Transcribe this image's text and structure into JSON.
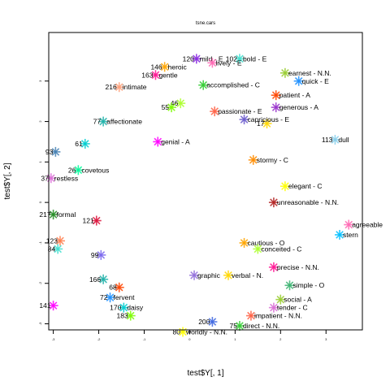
{
  "chart_data": {
    "type": "scatter",
    "title": "tsne.cars",
    "xlabel": "test$Y[, 1]",
    "ylabel": "test$Y[, 2]",
    "xlim": [
      -3.1,
      3.8
    ],
    "ylim": [
      -3.15,
      4.2
    ],
    "xticks": [
      -3,
      -2,
      -1,
      0,
      1,
      2,
      3
    ],
    "yticks": [
      -3,
      -2,
      -1,
      0,
      1,
      2,
      3
    ],
    "grid": false,
    "points": [
      {
        "id": "120",
        "label": "mild - E",
        "x": 0.15,
        "y": 3.55,
        "color": "#8a2be2"
      },
      {
        "id": "102",
        "label": "bold - E",
        "x": 1.1,
        "y": 3.55,
        "color": "#40e0d0"
      },
      {
        "id": "",
        "label": "lively - E",
        "x": 0.5,
        "y": 3.45,
        "color": "#ff69b4"
      },
      {
        "id": "146",
        "label": "heroic",
        "x": -0.55,
        "y": 3.35,
        "color": "#ffa500"
      },
      {
        "id": "",
        "label": "earnest - N.N.",
        "x": 2.1,
        "y": 3.2,
        "color": "#9acd32"
      },
      {
        "id": "163",
        "label": "gentle",
        "x": -0.75,
        "y": 3.15,
        "color": "#ff1493"
      },
      {
        "id": "",
        "label": "quick - E",
        "x": 2.4,
        "y": 3.0,
        "color": "#1e90ff"
      },
      {
        "id": "",
        "label": "accomplished - C",
        "x": 0.3,
        "y": 2.9,
        "color": "#32cd32"
      },
      {
        "id": "216",
        "label": "intimate",
        "x": -1.55,
        "y": 2.85,
        "color": "#ffa07a"
      },
      {
        "id": "",
        "label": "patient - A",
        "x": 1.9,
        "y": 2.65,
        "color": "#ff4500"
      },
      {
        "id": "46",
        "label": "",
        "x": -0.2,
        "y": 2.45,
        "color": "#adff2f"
      },
      {
        "id": "55",
        "label": "",
        "x": -0.4,
        "y": 2.35,
        "color": "#7cfc00"
      },
      {
        "id": "",
        "label": "generous - A",
        "x": 1.9,
        "y": 2.35,
        "color": "#9932cc"
      },
      {
        "id": "",
        "label": "passionate - E",
        "x": 0.55,
        "y": 2.25,
        "color": "#ff6347"
      },
      {
        "id": "77",
        "label": "affectionate",
        "x": -1.9,
        "y": 2.0,
        "color": "#20b2aa"
      },
      {
        "id": "17",
        "label": "",
        "x": 1.7,
        "y": 1.95,
        "color": "#ffd700"
      },
      {
        "id": "",
        "label": "capricious - E",
        "x": 1.2,
        "y": 2.05,
        "color": "#6a5acd"
      },
      {
        "id": "",
        "label": "genial - A",
        "x": -0.7,
        "y": 1.5,
        "color": "#ff00ff"
      },
      {
        "id": "113",
        "label": "dull",
        "x": 3.2,
        "y": 1.55,
        "color": "#87ceeb"
      },
      {
        "id": "61",
        "label": "",
        "x": -2.3,
        "y": 1.45,
        "color": "#00ced1"
      },
      {
        "id": "93",
        "label": "",
        "x": -2.95,
        "y": 1.25,
        "color": "#4682b4"
      },
      {
        "id": "",
        "label": "stormy - C",
        "x": 1.4,
        "y": 1.05,
        "color": "#ff8c00"
      },
      {
        "id": "26",
        "label": "covetous",
        "x": -2.45,
        "y": 0.8,
        "color": "#00fa9a"
      },
      {
        "id": "37",
        "label": "restless",
        "x": -3.05,
        "y": 0.6,
        "color": "#da70d6"
      },
      {
        "id": "",
        "label": "elegant - C",
        "x": 2.1,
        "y": 0.4,
        "color": "#ffff00"
      },
      {
        "id": "",
        "label": "unreasonable - N.N.",
        "x": 1.85,
        "y": 0.0,
        "color": "#b22222"
      },
      {
        "id": "217",
        "label": "formal",
        "x": -3.0,
        "y": -0.3,
        "color": "#228b22"
      },
      {
        "id": "121",
        "label": "",
        "x": -2.05,
        "y": -0.45,
        "color": "#dc143c"
      },
      {
        "id": "123",
        "label": "",
        "x": -2.85,
        "y": -0.95,
        "color": "#ff7f50"
      },
      {
        "id": "84",
        "label": "",
        "x": -2.9,
        "y": -1.15,
        "color": "#40e0d0"
      },
      {
        "id": "",
        "label": "agreeable",
        "x": 3.5,
        "y": -0.55,
        "color": "#ff69b4"
      },
      {
        "id": "",
        "label": "stern",
        "x": 3.3,
        "y": -0.8,
        "color": "#00bfff"
      },
      {
        "id": "99",
        "label": "",
        "x": -1.95,
        "y": -1.3,
        "color": "#7b68ee"
      },
      {
        "id": "",
        "label": "cautious - O",
        "x": 1.2,
        "y": -1.0,
        "color": "#ffa500"
      },
      {
        "id": "",
        "label": "conceited - C",
        "x": 1.5,
        "y": -1.15,
        "color": "#adff2f"
      },
      {
        "id": "",
        "label": "precise - N.N.",
        "x": 1.85,
        "y": -1.6,
        "color": "#ff1493"
      },
      {
        "id": "166",
        "label": "",
        "x": -1.9,
        "y": -1.9,
        "color": "#20b2aa"
      },
      {
        "id": "",
        "label": "verbal - N.",
        "x": 0.85,
        "y": -1.8,
        "color": "#ffd700"
      },
      {
        "id": "",
        "label": "graphic",
        "x": 0.1,
        "y": -1.8,
        "color": "#9370db"
      },
      {
        "id": "",
        "label": "simple - O",
        "x": 2.2,
        "y": -2.05,
        "color": "#3cb371"
      },
      {
        "id": "68",
        "label": "",
        "x": -1.55,
        "y": -2.1,
        "color": "#ff4500"
      },
      {
        "id": "72",
        "label": "fervent",
        "x": -1.75,
        "y": -2.35,
        "color": "#1e90ff"
      },
      {
        "id": "141",
        "label": "",
        "x": -3.0,
        "y": -2.55,
        "color": "#ff00ff"
      },
      {
        "id": "170",
        "label": "daisy",
        "x": -1.45,
        "y": -2.6,
        "color": "#00ced1"
      },
      {
        "id": "",
        "label": "social - A",
        "x": 2.0,
        "y": -2.4,
        "color": "#9acd32"
      },
      {
        "id": "",
        "label": "tender - C",
        "x": 1.85,
        "y": -2.6,
        "color": "#da70d6"
      },
      {
        "id": "183",
        "label": "",
        "x": -1.3,
        "y": -2.8,
        "color": "#7cfc00"
      },
      {
        "id": "",
        "label": "impatient - N.N.",
        "x": 1.35,
        "y": -2.8,
        "color": "#ff6347"
      },
      {
        "id": "200",
        "label": "",
        "x": 0.5,
        "y": -2.95,
        "color": "#4169e1"
      },
      {
        "id": "75",
        "label": "direct - N.N.",
        "x": 1.1,
        "y": -3.05,
        "color": "#32cd32"
      },
      {
        "id": "80",
        "label": "worldly - N.N.",
        "x": -0.15,
        "y": -3.2,
        "color": "#ffff00"
      }
    ]
  }
}
